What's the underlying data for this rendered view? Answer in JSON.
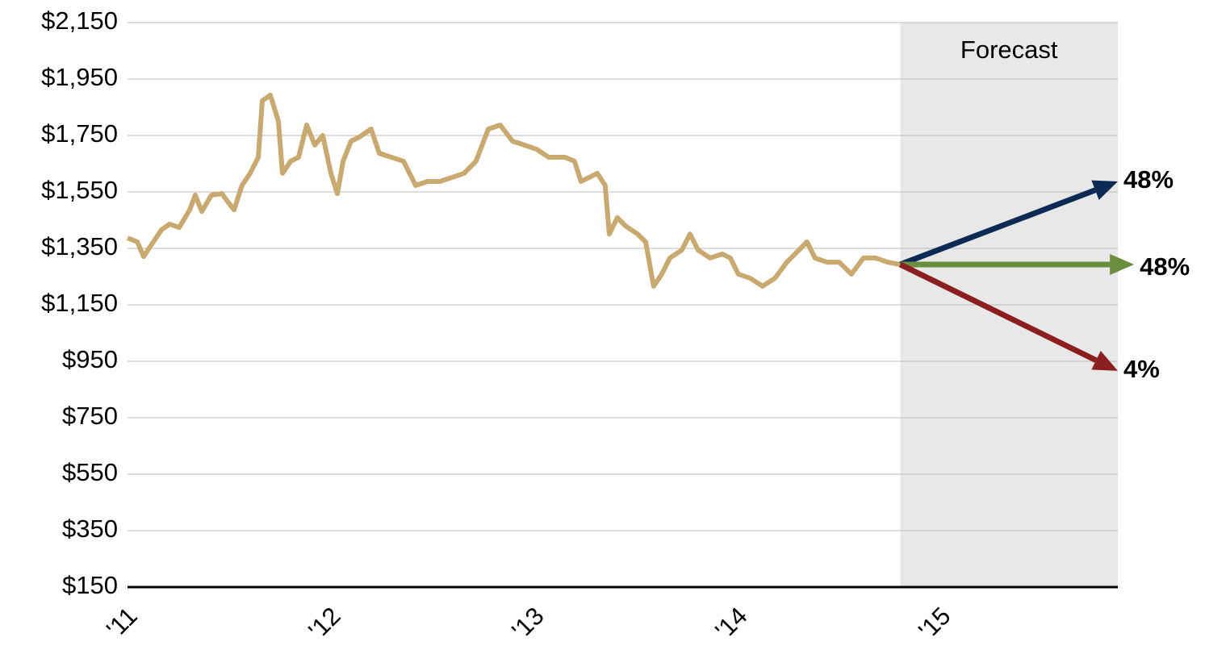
{
  "chart_data": {
    "type": "line",
    "forecast_label": "Forecast",
    "forecast_start": 2014.8,
    "forecast_color": "#e8e8e8",
    "xlim": [
      2011,
      2015.87
    ],
    "xticks": [
      {
        "value": 2011,
        "label": "'11"
      },
      {
        "value": 2012,
        "label": "'12"
      },
      {
        "value": 2013,
        "label": "'13"
      },
      {
        "value": 2014,
        "label": "'14"
      },
      {
        "value": 2015,
        "label": "'15"
      }
    ],
    "ylim": [
      150,
      2150
    ],
    "yticks": [
      {
        "value": 150,
        "label": "$150"
      },
      {
        "value": 350,
        "label": "$350"
      },
      {
        "value": 550,
        "label": "$550"
      },
      {
        "value": 750,
        "label": "$750"
      },
      {
        "value": 950,
        "label": "$950"
      },
      {
        "value": 1150,
        "label": "$1,150"
      },
      {
        "value": 1350,
        "label": "$1,350"
      },
      {
        "value": 1550,
        "label": "$1,550"
      },
      {
        "value": 1750,
        "label": "$1,750"
      },
      {
        "value": 1950,
        "label": "$1,950"
      },
      {
        "value": 2150,
        "label": "$2,150"
      }
    ],
    "grid": true,
    "series": [
      {
        "color": "#c9a96e",
        "x": [
          2011.0,
          2011.048,
          2011.079,
          2011.127,
          2011.167,
          2011.206,
          2011.254,
          2011.306,
          2011.333,
          2011.365,
          2011.413,
          2011.464,
          2011.492,
          2011.524,
          2011.563,
          2011.603,
          2011.643,
          2011.663,
          2011.702,
          2011.742,
          2011.762,
          2011.802,
          2011.841,
          2011.881,
          2011.921,
          2011.96,
          2012.0,
          2012.032,
          2012.06,
          2012.099,
          2012.139,
          2012.198,
          2012.238,
          2012.298,
          2012.357,
          2012.417,
          2012.476,
          2012.536,
          2012.595,
          2012.655,
          2012.714,
          2012.774,
          2012.833,
          2012.893,
          2012.952,
          2013.012,
          2013.071,
          2013.151,
          2013.198,
          2013.23,
          2013.31,
          2013.349,
          2013.369,
          2013.409,
          2013.448,
          2013.508,
          2013.548,
          2013.587,
          2013.627,
          2013.667,
          2013.726,
          2013.766,
          2013.806,
          2013.865,
          2013.925,
          2013.964,
          2014.004,
          2014.063,
          2014.123,
          2014.183,
          2014.242,
          2014.302,
          2014.341,
          2014.381,
          2014.44,
          2014.5,
          2014.56,
          2014.619,
          2014.679,
          2014.738,
          2014.798
        ],
        "values": [
          1387,
          1373,
          1321,
          1373,
          1416,
          1436,
          1424,
          1487,
          1539,
          1481,
          1539,
          1544,
          1516,
          1487,
          1573,
          1616,
          1673,
          1873,
          1893,
          1801,
          1616,
          1659,
          1673,
          1787,
          1716,
          1750,
          1616,
          1544,
          1659,
          1730,
          1744,
          1773,
          1687,
          1673,
          1659,
          1573,
          1587,
          1587,
          1601,
          1616,
          1659,
          1773,
          1787,
          1730,
          1716,
          1701,
          1673,
          1673,
          1659,
          1587,
          1616,
          1573,
          1401,
          1459,
          1430,
          1401,
          1373,
          1216,
          1259,
          1316,
          1344,
          1401,
          1344,
          1316,
          1330,
          1316,
          1259,
          1244,
          1216,
          1244,
          1301,
          1344,
          1373,
          1316,
          1301,
          1301,
          1259,
          1316,
          1316,
          1301,
          1293
        ]
      }
    ],
    "arrows": [
      {
        "color": "#0d2a55",
        "x": [
          2014.8,
          2015.87
        ],
        "values": [
          1293,
          1587
        ],
        "label": "48%"
      },
      {
        "color": "#6b8e3e",
        "x": [
          2014.8,
          2015.95
        ],
        "values": [
          1293,
          1293
        ],
        "label": "48%"
      },
      {
        "color": "#8b1f1f",
        "x": [
          2014.8,
          2015.87
        ],
        "values": [
          1293,
          916
        ],
        "label": "4%"
      }
    ]
  }
}
